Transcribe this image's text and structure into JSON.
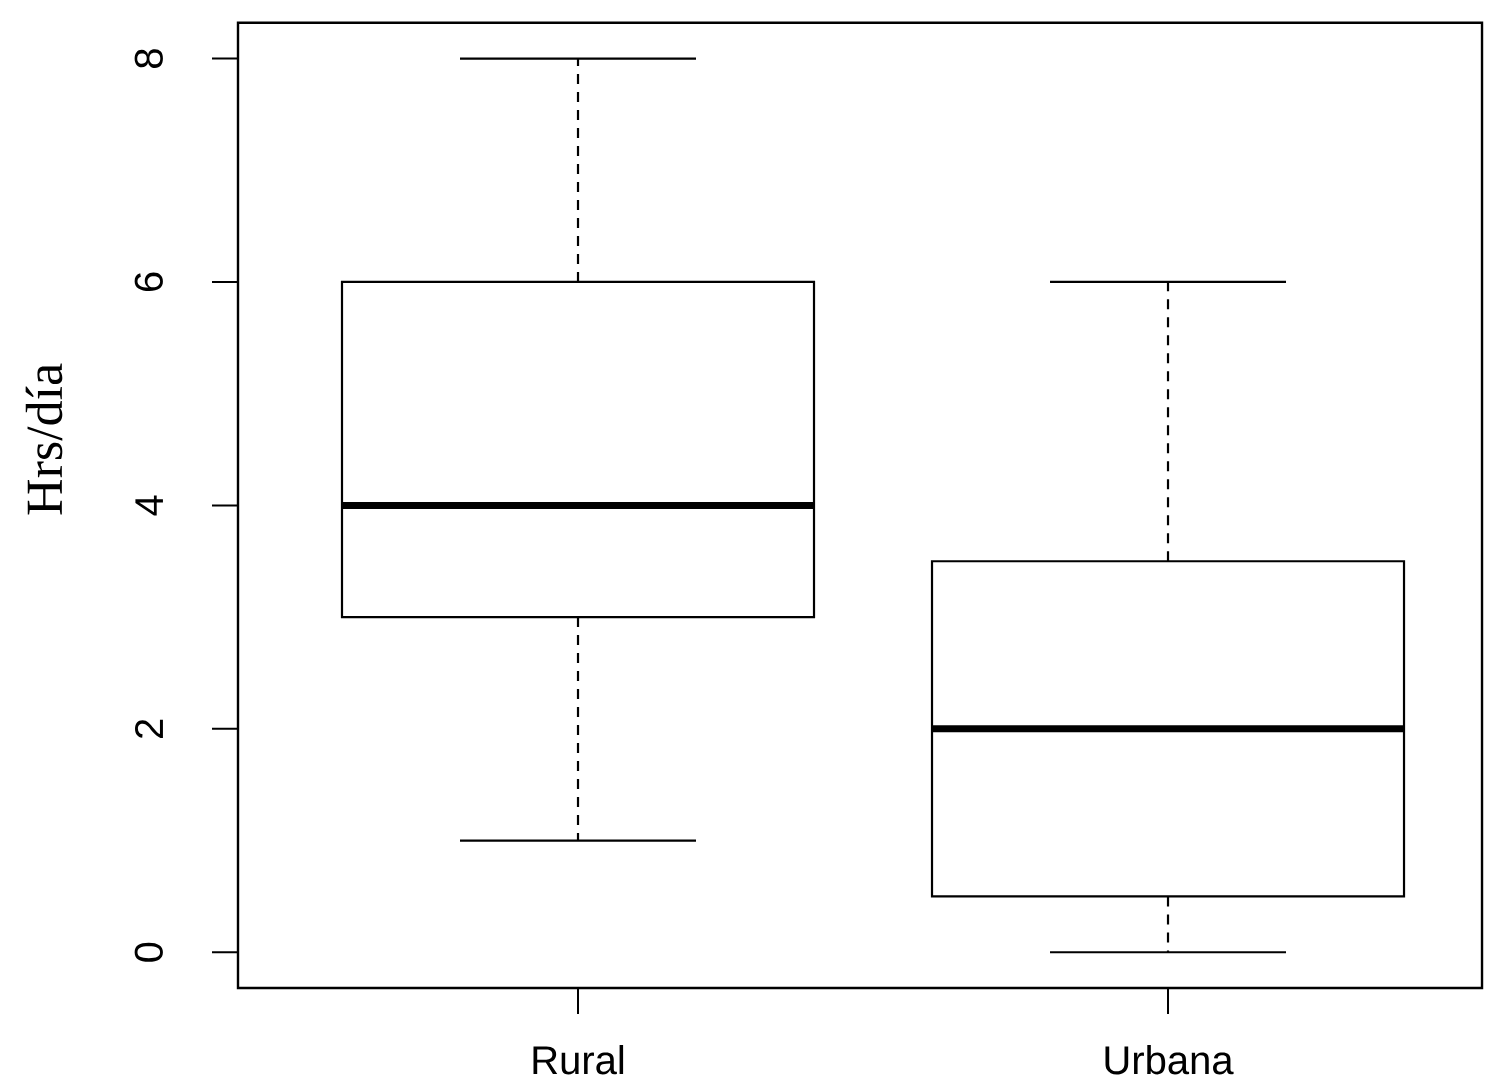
{
  "chart_data": {
    "type": "box",
    "ylabel": "Hrs/día",
    "categories": [
      "Rural",
      "Urbana"
    ],
    "boxes": [
      {
        "low": 1,
        "q1": 3,
        "median": 4,
        "q3": 6,
        "high": 8
      },
      {
        "low": 0,
        "q1": 0.5,
        "median": 2,
        "q3": 3.5,
        "high": 6
      }
    ],
    "ylim": [
      -0.32,
      8.32
    ],
    "yticks": [
      0,
      2,
      4,
      6,
      8
    ]
  }
}
